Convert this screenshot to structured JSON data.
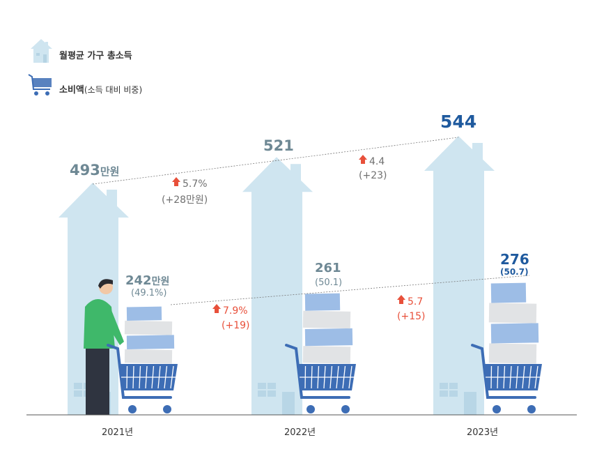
{
  "legend": {
    "income_label": "월평균 가구 총소득",
    "spending_label": "소비액",
    "spending_note": "(소득 대비 비중)"
  },
  "chart_data": {
    "type": "bar",
    "title": "",
    "categories": [
      "2021년",
      "2022년",
      "2023년"
    ],
    "series": [
      {
        "name": "월평균 가구 총소득",
        "unit": "만원",
        "values": [
          493,
          521,
          544
        ],
        "labels": [
          "493",
          "521",
          "544"
        ],
        "unit_label": "만원"
      },
      {
        "name": "소비액",
        "unit": "만원",
        "values": [
          242,
          261,
          276
        ],
        "labels": [
          "242",
          "261",
          "276"
        ],
        "unit_label": "만원",
        "ratio_labels": [
          "(49.1%)",
          "(50.1)",
          "(50.7)"
        ],
        "ratio": [
          49.1,
          50.1,
          50.7
        ]
      }
    ],
    "income_changes": [
      {
        "pct": "5.7%",
        "abs": "(+28만원)"
      },
      {
        "pct": "4.4",
        "abs": "(+23)"
      }
    ],
    "spending_changes": [
      {
        "pct": "7.9%",
        "abs": "(+19)"
      },
      {
        "pct": "5.7",
        "abs": "(+15)"
      }
    ],
    "colors": {
      "house": "#cfe5f0",
      "cart": "#3d6db5",
      "highlight": "#1f5a9e",
      "up": "#e8503a"
    }
  }
}
